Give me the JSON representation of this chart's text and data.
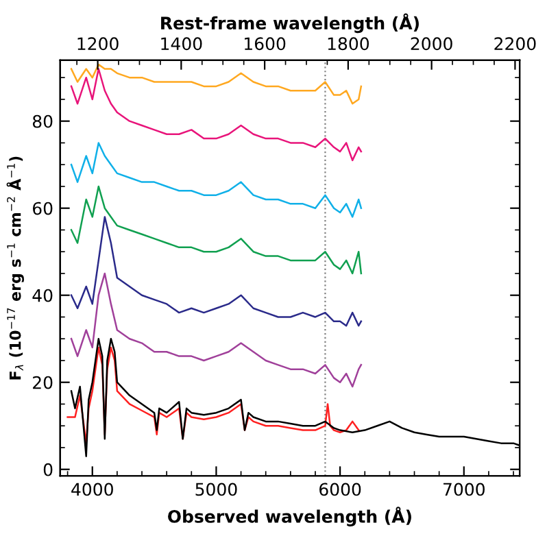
{
  "chart_data": {
    "type": "line",
    "xlabel": "Observed wavelength (Å)",
    "ylabel": "F$_{λ}$ (10$^{−17}$ erg s$^{−1}$ cm$^{−2}$ Å$^{−1}$)",
    "x2label": "Rest-frame wavelength (Å)",
    "xlim": [
      3740,
      7450
    ],
    "xticks": [
      4000,
      5000,
      6000,
      7000
    ],
    "x2lim": [
      1110,
      2211
    ],
    "x2ticks": [
      1200,
      1400,
      1600,
      1800,
      2000,
      2200
    ],
    "ylim": [
      -1.5,
      94
    ],
    "yticks": [
      0,
      20,
      40,
      60,
      80
    ],
    "grid": false,
    "legend": false,
    "line_style": "solid",
    "marker": "none",
    "ref_lines": [
      {
        "axis": "x",
        "value": 5880,
        "color": "#808080",
        "line_style": "dotted"
      }
    ],
    "series": [
      {
        "color": "#a0409a",
        "x": [
          3830,
          3880,
          3950,
          4000,
          4050,
          4100,
          4150,
          4200,
          4300,
          4400,
          4500,
          4600,
          4700,
          4800,
          4900,
          5000,
          5100,
          5200,
          5300,
          5400,
          5500,
          5600,
          5700,
          5800,
          5880,
          5950,
          6000,
          6050,
          6100,
          6150,
          6170
        ],
        "values": [
          30,
          26,
          32,
          28,
          40,
          45,
          38,
          32,
          30,
          29,
          27,
          27,
          26,
          26,
          25,
          26,
          27,
          29,
          27,
          25,
          24,
          23,
          23,
          22,
          24,
          21,
          20,
          22,
          19,
          23,
          24
        ]
      },
      {
        "color": "#2a2a8a",
        "x": [
          3830,
          3880,
          3950,
          4000,
          4050,
          4100,
          4150,
          4200,
          4300,
          4400,
          4500,
          4600,
          4700,
          4800,
          4900,
          5000,
          5100,
          5200,
          5300,
          5400,
          5500,
          5600,
          5700,
          5800,
          5880,
          5950,
          6000,
          6050,
          6100,
          6150,
          6170
        ],
        "values": [
          40,
          37,
          42,
          38,
          48,
          58,
          52,
          44,
          42,
          40,
          39,
          38,
          36,
          37,
          36,
          37,
          38,
          40,
          37,
          36,
          35,
          35,
          36,
          35,
          36,
          34,
          34,
          33,
          36,
          33,
          34
        ]
      },
      {
        "color": "#10a050",
        "x": [
          3830,
          3880,
          3950,
          4000,
          4050,
          4100,
          4150,
          4200,
          4300,
          4400,
          4500,
          4600,
          4700,
          4800,
          4900,
          5000,
          5100,
          5200,
          5300,
          5400,
          5500,
          5600,
          5700,
          5800,
          5880,
          5950,
          6000,
          6050,
          6100,
          6150,
          6170
        ],
        "values": [
          55,
          52,
          62,
          58,
          65,
          60,
          58,
          56,
          55,
          54,
          53,
          52,
          51,
          51,
          50,
          50,
          51,
          53,
          50,
          49,
          49,
          48,
          48,
          48,
          50,
          47,
          46,
          48,
          45,
          50,
          45
        ]
      },
      {
        "color": "#10b0e8",
        "x": [
          3830,
          3880,
          3950,
          4000,
          4050,
          4100,
          4150,
          4200,
          4300,
          4400,
          4500,
          4600,
          4700,
          4800,
          4900,
          5000,
          5100,
          5200,
          5300,
          5400,
          5500,
          5600,
          5700,
          5800,
          5880,
          5950,
          6000,
          6050,
          6100,
          6150,
          6170
        ],
        "values": [
          70,
          66,
          72,
          68,
          75,
          72,
          70,
          68,
          67,
          66,
          66,
          65,
          64,
          64,
          63,
          63,
          64,
          66,
          63,
          62,
          62,
          61,
          61,
          60,
          63,
          60,
          59,
          61,
          58,
          62,
          60
        ]
      },
      {
        "color": "#e8147a",
        "x": [
          3830,
          3880,
          3950,
          4000,
          4050,
          4100,
          4150,
          4200,
          4300,
          4400,
          4500,
          4600,
          4700,
          4800,
          4900,
          5000,
          5100,
          5200,
          5300,
          5400,
          5500,
          5600,
          5700,
          5800,
          5880,
          5950,
          6000,
          6050,
          6100,
          6150,
          6170
        ],
        "values": [
          88,
          84,
          90,
          85,
          92,
          87,
          84,
          82,
          80,
          79,
          78,
          77,
          77,
          78,
          76,
          76,
          77,
          79,
          77,
          76,
          76,
          75,
          75,
          74,
          76,
          74,
          73,
          75,
          71,
          74,
          73
        ]
      },
      {
        "color": "#ffa820",
        "x": [
          3830,
          3880,
          3950,
          4000,
          4050,
          4100,
          4150,
          4200,
          4300,
          4400,
          4500,
          4600,
          4700,
          4800,
          4900,
          5000,
          5100,
          5200,
          5300,
          5400,
          5500,
          5600,
          5700,
          5800,
          5880,
          5950,
          6000,
          6050,
          6100,
          6150,
          6170
        ],
        "values": [
          92,
          89,
          92,
          90,
          93,
          92,
          92,
          91,
          90,
          90,
          89,
          89,
          89,
          89,
          88,
          88,
          89,
          91,
          89,
          88,
          88,
          87,
          87,
          87,
          89,
          86,
          86,
          87,
          84,
          85,
          88
        ]
      },
      {
        "color": "#ff2020",
        "x": [
          3800,
          3830,
          3860,
          3900,
          3950,
          3970,
          4000,
          4050,
          4080,
          4100,
          4120,
          4150,
          4180,
          4200,
          4300,
          4400,
          4500,
          4520,
          4540,
          4600,
          4700,
          4730,
          4760,
          4800,
          4900,
          5000,
          5100,
          5200,
          5230,
          5260,
          5300,
          5400,
          5500,
          5600,
          5700,
          5800,
          5880,
          5900,
          5920,
          5950,
          6000,
          6050,
          6100,
          6150
        ],
        "values": [
          12,
          12,
          12,
          17,
          6,
          14,
          18,
          28,
          24,
          8,
          23,
          28,
          25,
          18,
          15,
          13.5,
          12,
          8,
          13,
          12,
          14,
          7,
          13,
          12,
          11.5,
          12,
          13,
          15,
          9,
          12,
          11,
          10,
          10,
          9.5,
          9,
          9,
          10,
          15,
          10,
          9,
          8.5,
          9,
          11,
          9
        ]
      },
      {
        "color": "#000000",
        "x": [
          3830,
          3860,
          3900,
          3950,
          3970,
          4000,
          4050,
          4080,
          4100,
          4120,
          4150,
          4180,
          4200,
          4300,
          4400,
          4500,
          4520,
          4540,
          4600,
          4700,
          4730,
          4760,
          4800,
          4900,
          5000,
          5100,
          5200,
          5230,
          5260,
          5300,
          5400,
          5500,
          5600,
          5700,
          5800,
          5880,
          5950,
          6000,
          6100,
          6200,
          6300,
          6400,
          6500,
          6600,
          6700,
          6800,
          6900,
          7000,
          7100,
          7200,
          7300,
          7400,
          7450
        ],
        "values": [
          18,
          14,
          19,
          3,
          16,
          20,
          30,
          26,
          7,
          25,
          30,
          27,
          20,
          17,
          15,
          13,
          9,
          14,
          13,
          15.5,
          7,
          14,
          13,
          12.5,
          13,
          14,
          16,
          9,
          13,
          12,
          11,
          11,
          10.5,
          10,
          10,
          11,
          9.5,
          9,
          8.5,
          9,
          10,
          11,
          9.5,
          8.5,
          8,
          7.5,
          7.5,
          7.5,
          7,
          6.5,
          6,
          6,
          5.5
        ]
      }
    ]
  }
}
